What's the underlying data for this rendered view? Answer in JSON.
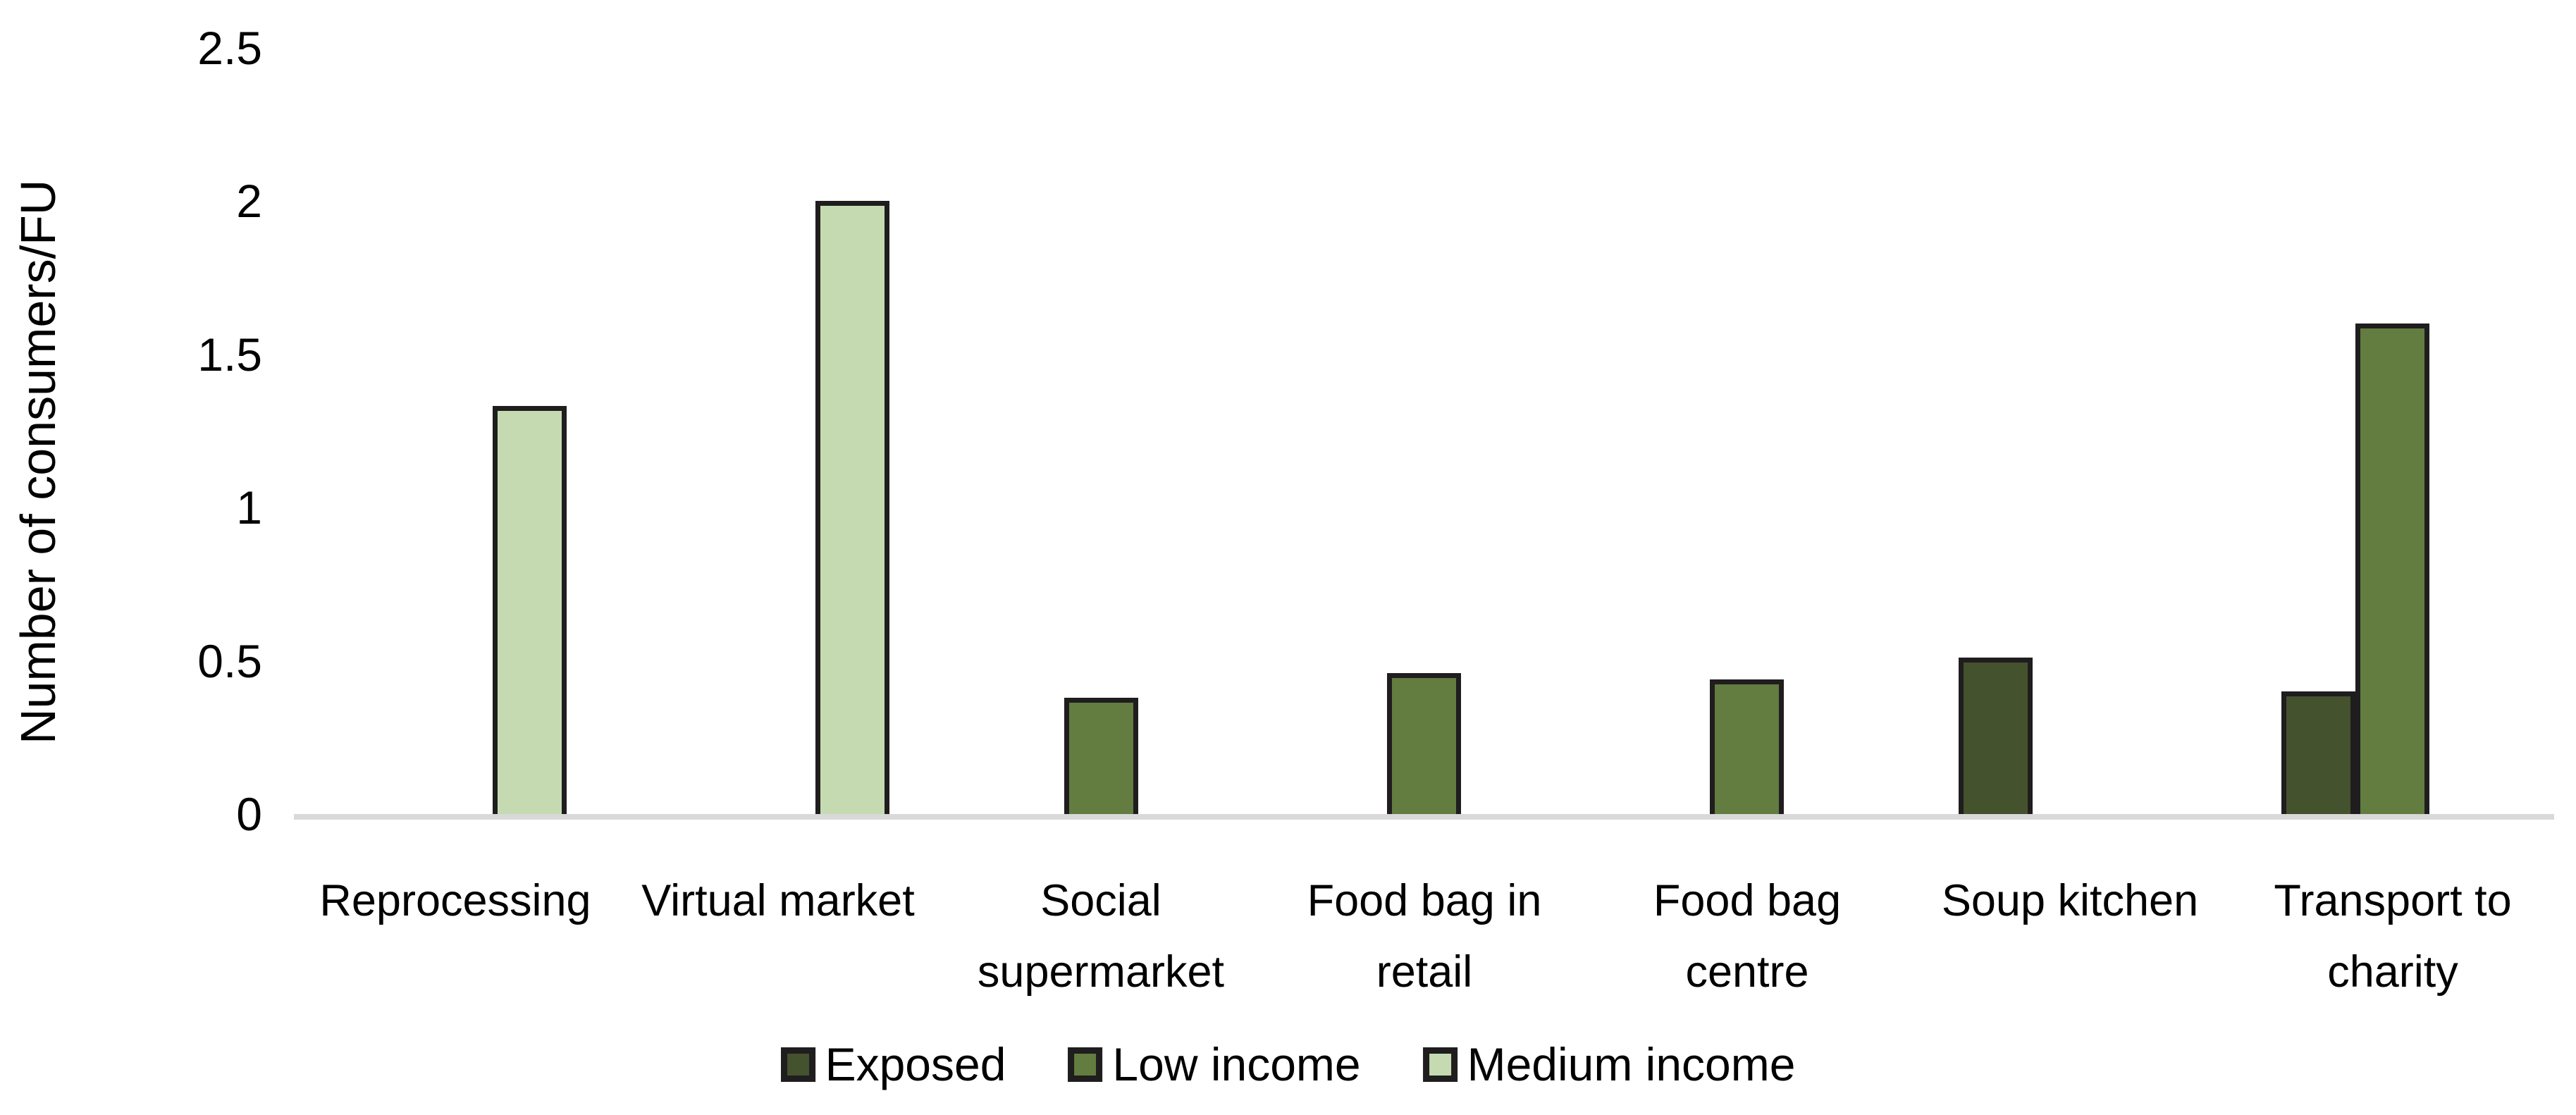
{
  "chart_data": {
    "type": "bar",
    "title": "",
    "ylabel": "Number of consumers/FU",
    "xlabel": "",
    "ylim": [
      0,
      2.5
    ],
    "ytick_labels": [
      "0",
      "0.5",
      "1",
      "1.5",
      "2",
      "2.5"
    ],
    "ytick_values": [
      0,
      0.5,
      1,
      1.5,
      2,
      2.5
    ],
    "grid": false,
    "legend_position": "bottom",
    "categories": [
      "Reprocessing",
      "Virtual market",
      "Social supermarket",
      "Food bag in retail",
      "Food bag centre",
      "Soup kitchen",
      "Transport to charity"
    ],
    "category_label_lines": [
      [
        "Reprocessing"
      ],
      [
        "Virtual market"
      ],
      [
        "Social",
        "supermarket"
      ],
      [
        "Food bag in",
        "retail"
      ],
      [
        "Food bag",
        "centre"
      ],
      [
        "Soup kitchen"
      ],
      [
        "Transport to",
        "charity"
      ]
    ],
    "series": [
      {
        "name": "Exposed",
        "color": "#45522e",
        "values": [
          null,
          null,
          null,
          null,
          null,
          0.51,
          0.4
        ]
      },
      {
        "name": "Low income",
        "color": "#637c40",
        "values": [
          null,
          null,
          0.38,
          0.46,
          0.44,
          null,
          1.6
        ]
      },
      {
        "name": "Medium income",
        "color": "#c5dab1",
        "values": [
          1.33,
          2.0,
          null,
          null,
          null,
          null,
          null
        ]
      }
    ],
    "colors": {
      "bar_border": "#1f1d1e",
      "axis_line": "#d9d9d9",
      "text": "#000000",
      "background": "#ffffff"
    }
  }
}
